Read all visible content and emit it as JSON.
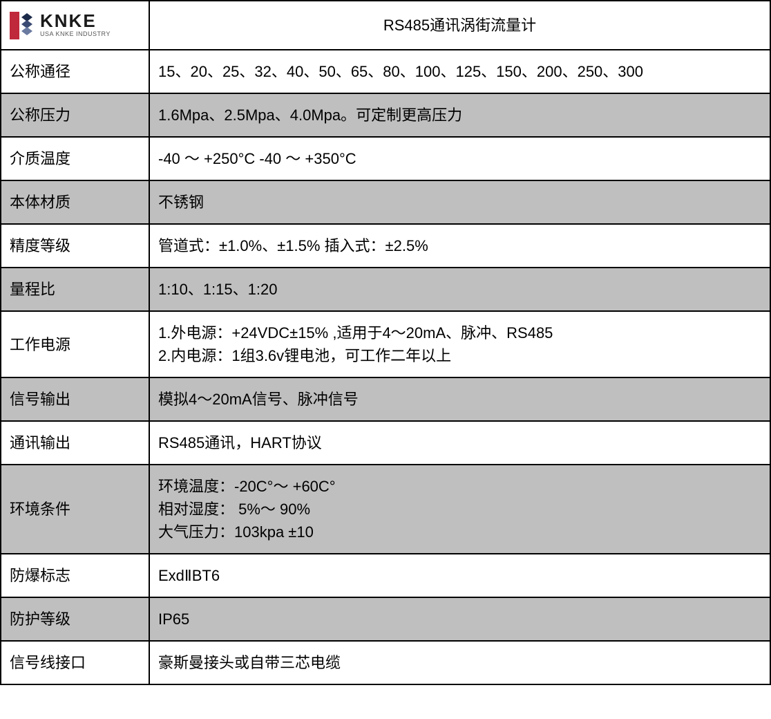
{
  "logo": {
    "brand": "KNKE",
    "sub": "USA KNKE INDUSTRY",
    "colors": {
      "red": "#c0293b",
      "navy": "#1c2a4a",
      "mid": "#3a4a72"
    }
  },
  "title": "RS485通讯涡街流量计",
  "rows": [
    {
      "label": "公称通径",
      "value": "15、20、25、32、40、50、65、80、100、125、150、200、250、300",
      "shade": "white"
    },
    {
      "label": "公称压力",
      "value": "1.6Mpa、2.5Mpa、4.0Mpa。可定制更高压力",
      "shade": "grey"
    },
    {
      "label": "介质温度",
      "value": "-40 ～ +250°C    -40 ～ +350°C",
      "shade": "white"
    },
    {
      "label": "本体材质",
      "value": "不锈钢",
      "shade": "grey"
    },
    {
      "label": "精度等级",
      "value": "管道式：±1.0%、±1.5% 插入式：±2.5%",
      "shade": "white"
    },
    {
      "label": "量程比",
      "value": "1:10、1:15、1:20",
      "shade": "grey"
    },
    {
      "label": "工作电源",
      "value": "1.外电源：+24VDC±15% ,适用于4～20mA、脉冲、RS485\n2.内电源：1组3.6v锂电池，可工作二年以上",
      "shade": "white"
    },
    {
      "label": "信号输出",
      "value": "模拟4～20mA信号、脉冲信号",
      "shade": "grey"
    },
    {
      "label": "通讯输出",
      "value": "RS485通讯，HART协议",
      "shade": "white"
    },
    {
      "label": "环境条件",
      "value": "环境温度：-20C°～ +60C°\n相对湿度：  5%～ 90%\n大气压力：103kpa ±10",
      "shade": "grey"
    },
    {
      "label": "防爆标志",
      "value": "ExdⅡBT6",
      "shade": "white"
    },
    {
      "label": "防护等级",
      "value": "IP65",
      "shade": "grey"
    },
    {
      "label": "信号线接口",
      "value": "豪斯曼接头或自带三芯电缆",
      "shade": "white"
    }
  ]
}
